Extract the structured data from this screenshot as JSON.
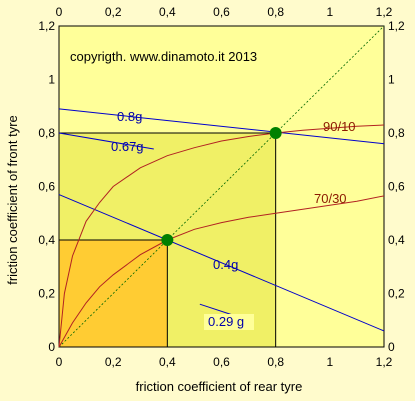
{
  "chart_data": {
    "type": "line",
    "copyright": "copyrigth. www.dinamoto.it  2013",
    "xlabel": "friction coefficient of rear tyre",
    "ylabel": "friction coefficient of front tyre",
    "xlim": [
      0,
      1.2
    ],
    "ylim": [
      0,
      1.2
    ],
    "xticks": [
      "0",
      "0,2",
      "0,4",
      "0,6",
      "0,8",
      "1",
      "1,2"
    ],
    "yticks": [
      "0",
      "0,2",
      "0,4",
      "0,6",
      "0,8",
      "1",
      "1,2"
    ],
    "colors": {
      "plot_bg": "#ffff99",
      "inner_rect": "#f0f066",
      "small_rect": "#ffcc33",
      "blue": "#0000cc",
      "red": "#b22222",
      "marker": "#008000",
      "page_bg": "#fffbcc"
    },
    "rectangles": [
      {
        "name": "big",
        "x": [
          0,
          0.8
        ],
        "y": [
          0,
          0.8
        ]
      },
      {
        "name": "small",
        "x": [
          0,
          0.4
        ],
        "y": [
          0,
          0.4
        ]
      }
    ],
    "diagonal": {
      "name": "",
      "x": [
        0,
        1.2
      ],
      "y": [
        0,
        1.2
      ],
      "style": "dashed"
    },
    "blue_lines": [
      {
        "label": "0.8g",
        "x": [
          0,
          1.2
        ],
        "y": [
          0.89,
          0.76
        ]
      },
      {
        "label": "0.67g",
        "x": [
          0,
          0.35
        ],
        "y": [
          0.8,
          0.74
        ]
      },
      {
        "label": "0.4g",
        "x": [
          0,
          1.2
        ],
        "y": [
          0.57,
          0.06
        ]
      },
      {
        "label": "0.29 g",
        "x": [
          0.52,
          0.64
        ],
        "y": [
          0.16,
          0.12
        ]
      }
    ],
    "series": [
      {
        "name": "90/10",
        "x": [
          0,
          0.02,
          0.05,
          0.1,
          0.15,
          0.2,
          0.3,
          0.4,
          0.5,
          0.6,
          0.7,
          0.8,
          0.9,
          1.0,
          1.1,
          1.2
        ],
        "y": [
          0,
          0.2,
          0.34,
          0.47,
          0.54,
          0.6,
          0.67,
          0.715,
          0.745,
          0.77,
          0.787,
          0.8,
          0.81,
          0.818,
          0.825,
          0.83
        ]
      },
      {
        "name": "70/30",
        "x": [
          0,
          0.05,
          0.1,
          0.15,
          0.2,
          0.3,
          0.4,
          0.5,
          0.6,
          0.7,
          0.8,
          0.9,
          1.0,
          1.1,
          1.2
        ],
        "y": [
          0,
          0.09,
          0.165,
          0.225,
          0.27,
          0.345,
          0.4,
          0.44,
          0.465,
          0.485,
          0.5,
          0.515,
          0.53,
          0.545,
          0.565
        ]
      }
    ],
    "points": [
      {
        "x": 0.8,
        "y": 0.8
      },
      {
        "x": 0.4,
        "y": 0.4
      }
    ]
  }
}
